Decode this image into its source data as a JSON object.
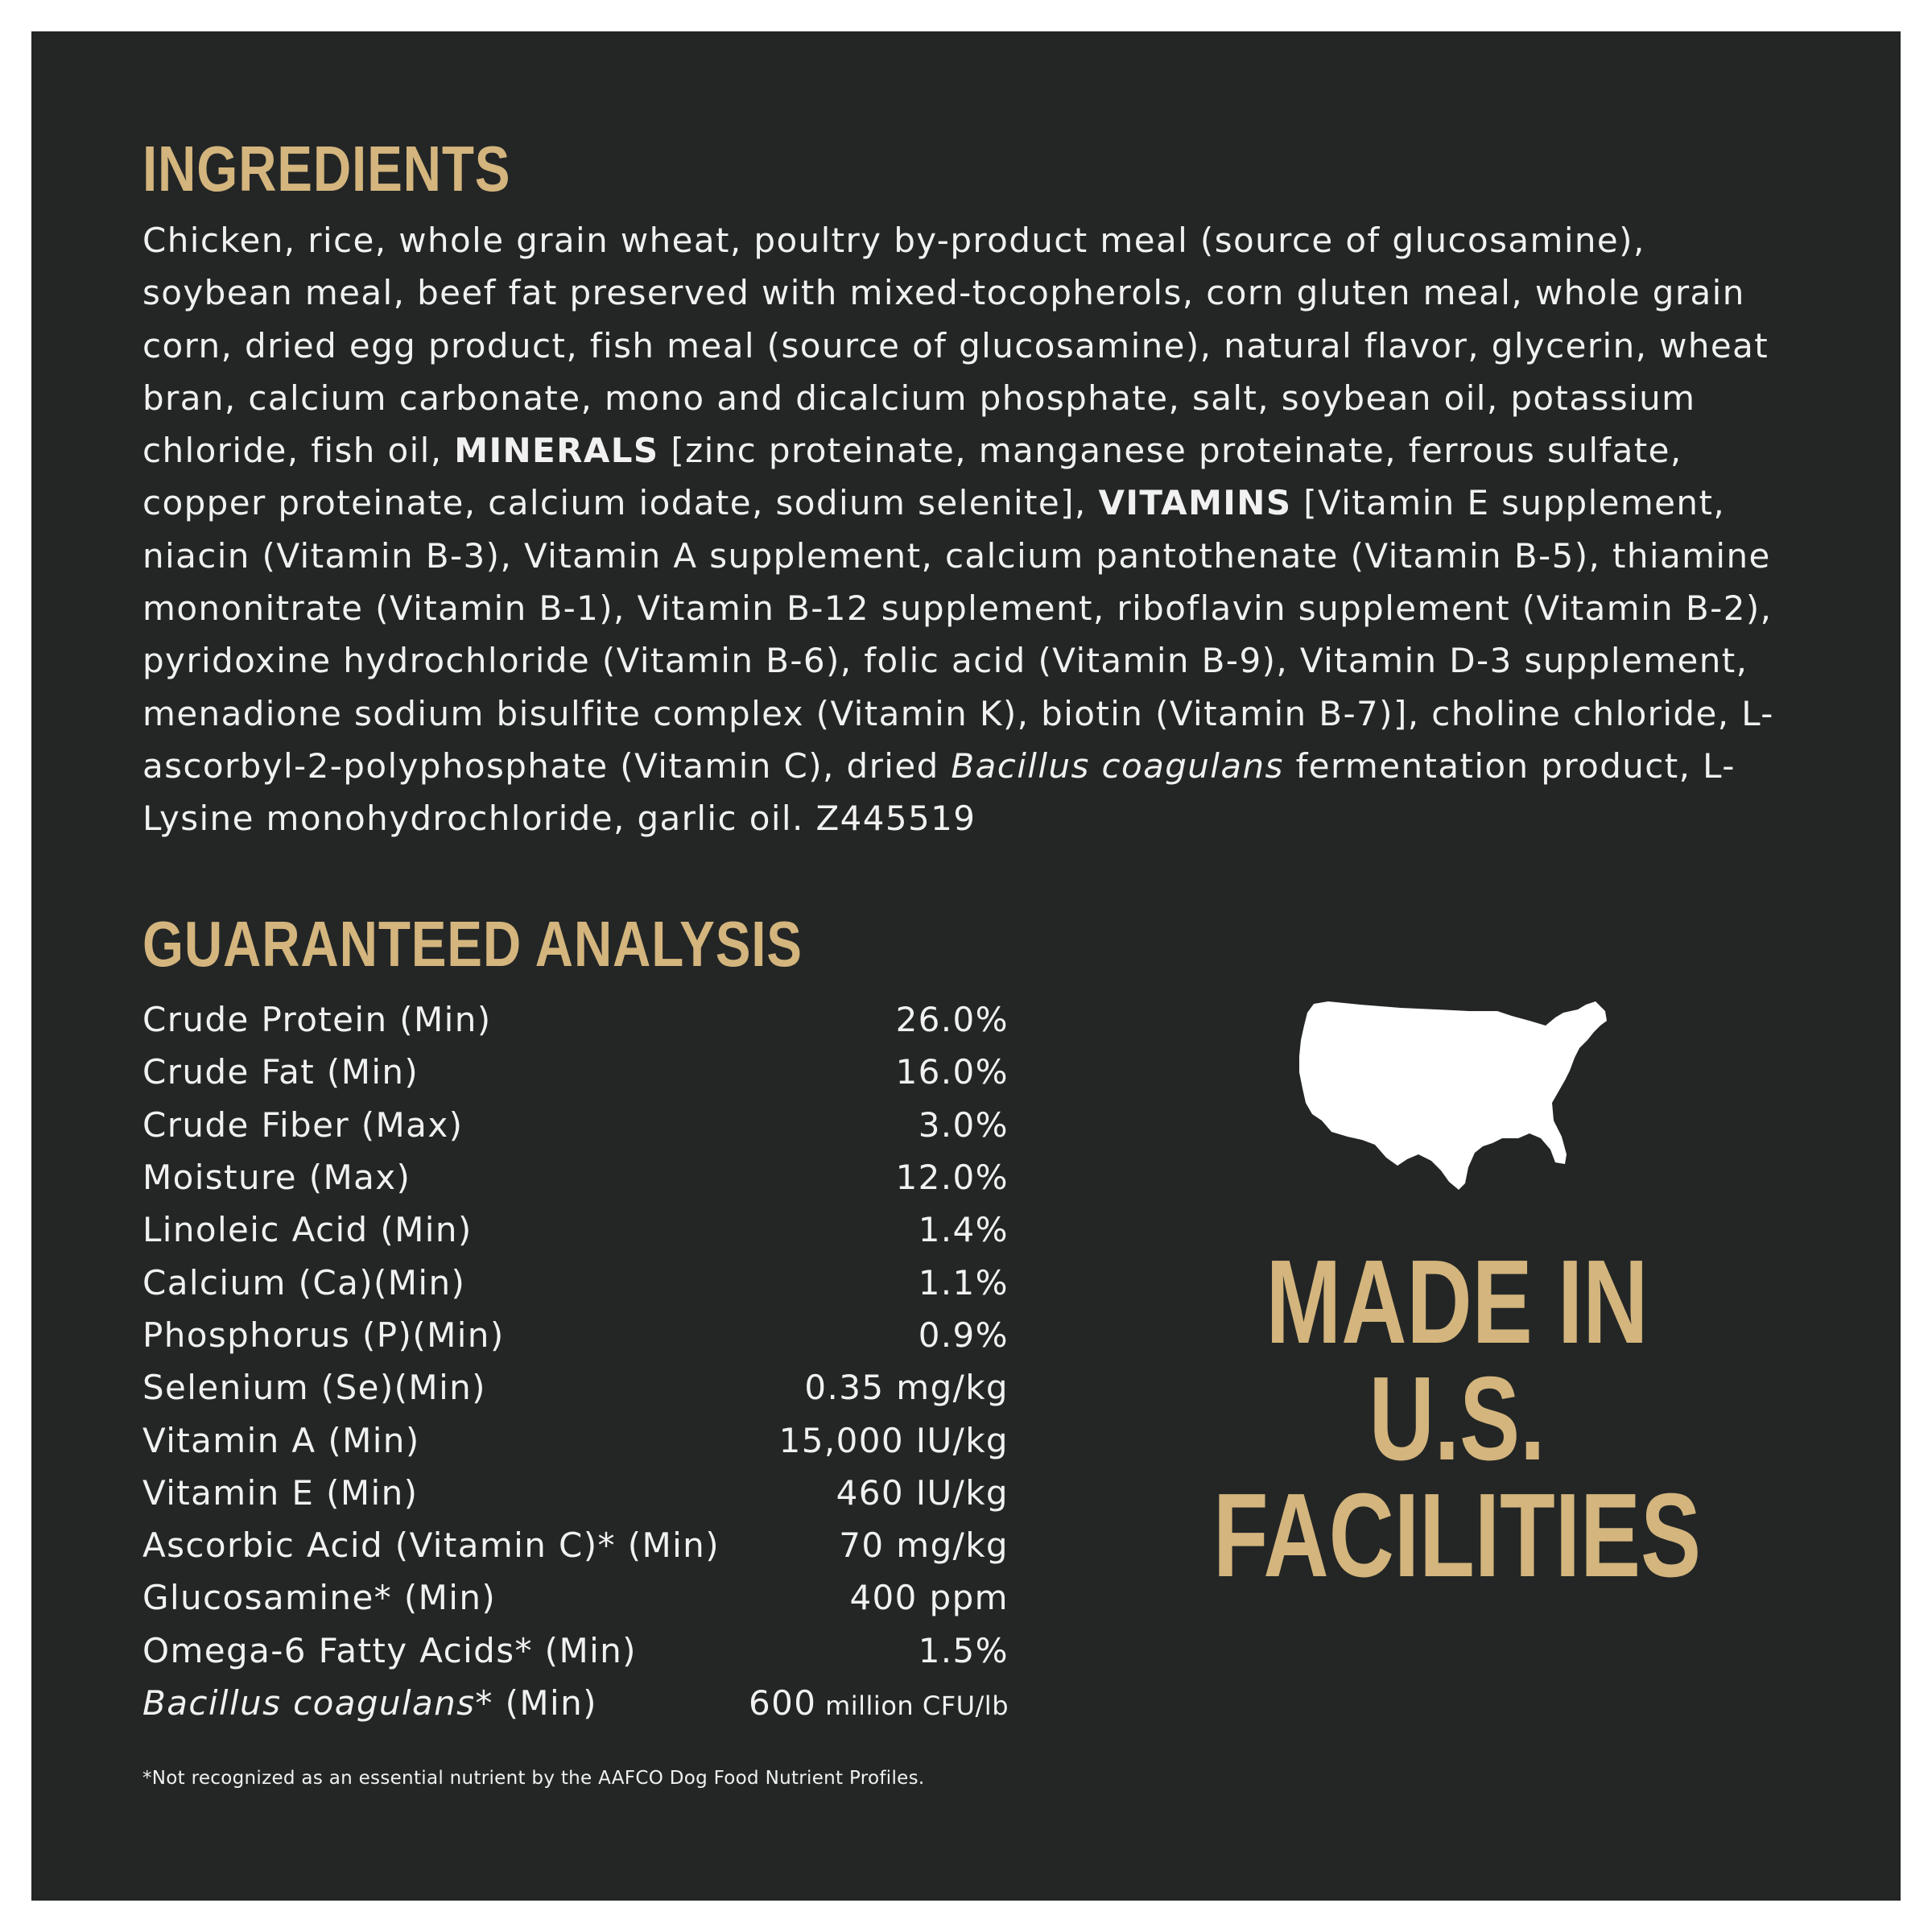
{
  "ingredients": {
    "title": "INGREDIENTS",
    "text_1": "Chicken, rice, whole grain wheat, poultry by-product meal (source of glucosamine), soybean meal, beef fat preserved with mixed-tocopherols, corn gluten meal, whole grain corn, dried egg product, fish meal (source of glucosamine), natural flavor, glycerin, wheat bran, calcium carbonate, mono and dicalcium phosphate, salt, soybean oil, potassium chloride, fish oil, ",
    "minerals_label": "MINERALS",
    "text_2": " [zinc proteinate, manganese proteinate, ferrous sulfate, copper proteinate, calcium iodate, sodium selenite], ",
    "vitamins_label": "VITAMINS",
    "text_3": " [Vitamin E supplement, niacin (Vitamin B-3), Vitamin A supplement, calcium pantothenate (Vitamin B-5), thiamine mononitrate (Vitamin B-1), Vitamin B-12 supplement, riboflavin supplement (Vitamin B-2), pyridoxine hydrochloride (Vitamin B-6), folic acid (Vitamin B-9), Vitamin D-3 supplement, menadione sodium bisulfite complex (Vitamin K), biotin (Vitamin B-7)], choline chloride, L-ascorbyl-2-polyphosphate (Vitamin C), dried ",
    "bacillus_italic": "Bacillus coagulans",
    "text_4": " fermentation product, L-Lysine monohydrochloride, garlic oil. Z445519"
  },
  "analysis": {
    "title": "GUARANTEED ANALYSIS",
    "rows": [
      {
        "name": "Crude Protein (Min)",
        "value": "26.0%"
      },
      {
        "name": "Crude Fat (Min)",
        "value": "16.0%"
      },
      {
        "name": "Crude Fiber (Max)",
        "value": "3.0%"
      },
      {
        "name": "Moisture (Max)",
        "value": "12.0%"
      },
      {
        "name": "Linoleic Acid (Min)",
        "value": "1.4%"
      },
      {
        "name": "Calcium (Ca)(Min)",
        "value": "1.1%"
      },
      {
        "name": "Phosphorus (P)(Min)",
        "value": "0.9%"
      },
      {
        "name": "Selenium (Se)(Min)",
        "value": "0.35 mg/kg"
      },
      {
        "name": "Vitamin A (Min)",
        "value": "15,000 IU/kg"
      },
      {
        "name": "Vitamin E (Min)",
        "value": "460 IU/kg"
      },
      {
        "name": "Ascorbic Acid (Vitamin C)* (Min)",
        "value": "70 mg/kg"
      },
      {
        "name": "Glucosamine* (Min)",
        "value": "400 ppm"
      },
      {
        "name": "Omega-6 Fatty Acids* (Min)",
        "value": "1.5%"
      }
    ],
    "last_row": {
      "name_italic": "Bacillus coagulans",
      "name_rest": "* (Min)",
      "value": "600",
      "unit": " million CFU/lb"
    },
    "footnote": "*Not recognized as an essential nutrient by the AAFCO Dog Food Nutrient Profiles."
  },
  "badge": {
    "icon": "usa-map-icon",
    "line1": "MADE IN",
    "line2": "U.S.",
    "line3": "FACILITIES"
  },
  "colors": {
    "background": "#242626",
    "accent": "#d3b57d",
    "text": "#f1f1f1"
  }
}
